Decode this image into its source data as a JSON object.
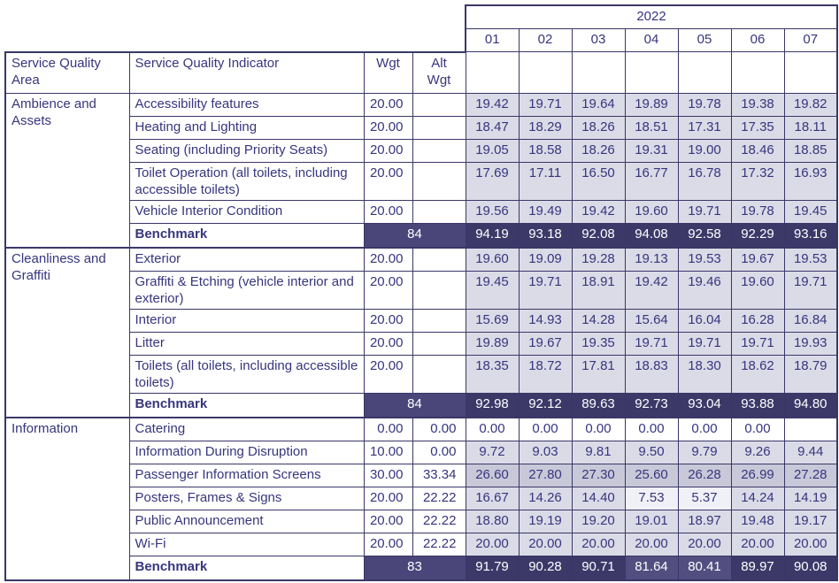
{
  "colors": {
    "text": "#37357e",
    "border": "#3a3768",
    "cell_lavender": "#dbdbe7",
    "cell_dark_lavender": "#c8c8d8",
    "cell_pale": "#f0f0f7",
    "cell_white": "#ffffff",
    "benchmark_bg": "#3c3969",
    "benchmark_weight_bg": "#4a4679",
    "benchmark_light_bg": "#524e80",
    "benchmark_text": "#ffffff"
  },
  "table": {
    "year": "2022",
    "months": [
      "01",
      "02",
      "03",
      "04",
      "05",
      "06",
      "07"
    ],
    "headers": {
      "area": "Service Quality Area",
      "indicator": "Service Quality Indicator",
      "wgt": "Wgt",
      "alt_wgt": "Alt Wgt"
    }
  },
  "sections": [
    {
      "area": "Ambience and Assets",
      "rows": [
        {
          "indicator": "Accessibility features",
          "wgt": "20.00",
          "alt_wgt": "",
          "values": [
            "19.42",
            "19.71",
            "19.64",
            "19.89",
            "19.78",
            "19.38",
            "19.82"
          ]
        },
        {
          "indicator": "Heating and Lighting",
          "wgt": "20.00",
          "alt_wgt": "",
          "values": [
            "18.47",
            "18.29",
            "18.26",
            "18.51",
            "17.31",
            "17.35",
            "18.11"
          ]
        },
        {
          "indicator": "Seating (including Priority Seats)",
          "wgt": "20.00",
          "alt_wgt": "",
          "values": [
            "19.05",
            "18.58",
            "18.26",
            "19.31",
            "19.00",
            "18.46",
            "18.85"
          ]
        },
        {
          "indicator": "Toilet Operation (all toilets, including accessible toilets)",
          "wgt": "20.00",
          "alt_wgt": "",
          "values": [
            "17.69",
            "17.11",
            "16.50",
            "16.77",
            "16.78",
            "17.32",
            "16.93"
          ]
        },
        {
          "indicator": "Vehicle Interior Condition",
          "wgt": "20.00",
          "alt_wgt": "",
          "values": [
            "19.56",
            "19.49",
            "19.42",
            "19.60",
            "19.71",
            "19.78",
            "19.45"
          ]
        }
      ],
      "benchmark": {
        "label": "Benchmark",
        "weight": "84",
        "values": [
          "94.19",
          "93.18",
          "92.08",
          "94.08",
          "92.58",
          "92.29",
          "93.16"
        ],
        "highlight": []
      }
    },
    {
      "area": "Cleanliness and Graffiti",
      "rows": [
        {
          "indicator": "Exterior",
          "wgt": "20.00",
          "alt_wgt": "",
          "values": [
            "19.60",
            "19.09",
            "19.28",
            "19.13",
            "19.53",
            "19.67",
            "19.53"
          ]
        },
        {
          "indicator": "Graffiti & Etching (vehicle interior and exterior)",
          "wgt": "20.00",
          "alt_wgt": "",
          "values": [
            "19.45",
            "19.71",
            "18.91",
            "19.42",
            "19.46",
            "19.60",
            "19.71"
          ]
        },
        {
          "indicator": "Interior",
          "wgt": "20.00",
          "alt_wgt": "",
          "values": [
            "15.69",
            "14.93",
            "14.28",
            "15.64",
            "16.04",
            "16.28",
            "16.84"
          ]
        },
        {
          "indicator": "Litter",
          "wgt": "20.00",
          "alt_wgt": "",
          "values": [
            "19.89",
            "19.67",
            "19.35",
            "19.71",
            "19.71",
            "19.71",
            "19.93"
          ]
        },
        {
          "indicator": "Toilets (all toilets, including accessible toilets)",
          "wgt": "20.00",
          "alt_wgt": "",
          "values": [
            "18.35",
            "18.72",
            "17.81",
            "18.83",
            "18.30",
            "18.62",
            "18.79"
          ]
        }
      ],
      "benchmark": {
        "label": "Benchmark",
        "weight": "84",
        "values": [
          "92.98",
          "92.12",
          "89.63",
          "92.73",
          "93.04",
          "93.88",
          "94.80"
        ],
        "highlight": []
      }
    },
    {
      "area": "Information",
      "rows": [
        {
          "indicator": "Catering",
          "wgt": "0.00",
          "alt_wgt": "0.00",
          "values": [
            "0.00",
            "0.00",
            "0.00",
            "0.00",
            "0.00",
            "0.00",
            ""
          ],
          "bg": "white"
        },
        {
          "indicator": "Information During Disruption",
          "wgt": "10.00",
          "alt_wgt": "0.00",
          "values": [
            "9.72",
            "9.03",
            "9.81",
            "9.50",
            "9.79",
            "9.26",
            "9.44"
          ]
        },
        {
          "indicator": "Passenger Information Screens",
          "wgt": "30.00",
          "alt_wgt": "33.34",
          "values": [
            "26.60",
            "27.80",
            "27.30",
            "25.60",
            "26.28",
            "26.99",
            "27.28"
          ],
          "bg": "dark_lav"
        },
        {
          "indicator": "Posters, Frames & Signs",
          "wgt": "20.00",
          "alt_wgt": "22.22",
          "values": [
            "16.67",
            "14.26",
            "14.40",
            "7.53",
            "5.37",
            "14.24",
            "14.19"
          ],
          "bgs": [
            "lav",
            "lav",
            "lav",
            "pale",
            "pale",
            "lav",
            "lav"
          ]
        },
        {
          "indicator": "Public Announcement",
          "wgt": "20.00",
          "alt_wgt": "22.22",
          "values": [
            "18.80",
            "19.19",
            "19.20",
            "19.01",
            "18.97",
            "19.48",
            "19.17"
          ]
        },
        {
          "indicator": "Wi-Fi",
          "wgt": "20.00",
          "alt_wgt": "22.22",
          "values": [
            "20.00",
            "20.00",
            "20.00",
            "20.00",
            "20.00",
            "20.00",
            "20.00"
          ]
        }
      ],
      "benchmark": {
        "label": "Benchmark",
        "weight": "83",
        "values": [
          "91.79",
          "90.28",
          "90.71",
          "81.64",
          "80.41",
          "89.97",
          "90.08"
        ],
        "highlight": [
          3,
          4
        ]
      }
    }
  ]
}
